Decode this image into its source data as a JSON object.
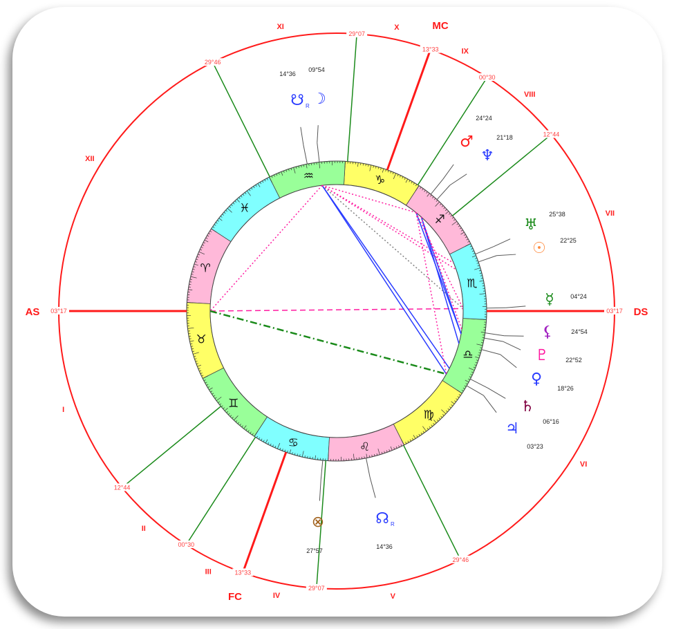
{
  "chart": {
    "ascendant": "03°17",
    "angles": {
      "as": "AS",
      "ds": "DS",
      "mc": "MC",
      "fc": "FC"
    },
    "signs": [
      {
        "name": "Aries",
        "glyph": "♈",
        "color": "#ffb9d9"
      },
      {
        "name": "Taurus",
        "glyph": "♉",
        "color": "#ffff66"
      },
      {
        "name": "Gemini",
        "glyph": "♊",
        "color": "#99ff99"
      },
      {
        "name": "Cancer",
        "glyph": "♋",
        "color": "#80ffff"
      },
      {
        "name": "Leo",
        "glyph": "♌",
        "color": "#ffb9d9"
      },
      {
        "name": "Virgo",
        "glyph": "♍",
        "color": "#ffff66"
      },
      {
        "name": "Libra",
        "glyph": "♎",
        "color": "#99ff99"
      },
      {
        "name": "Scorpio",
        "glyph": "♏",
        "color": "#80ffff"
      },
      {
        "name": "Sagittarius",
        "glyph": "♐",
        "color": "#ffb9d9"
      },
      {
        "name": "Capricorn",
        "glyph": "♑",
        "color": "#ffff66"
      },
      {
        "name": "Aquarius",
        "glyph": "♒",
        "color": "#99ff99"
      },
      {
        "name": "Pisces",
        "glyph": "♓",
        "color": "#80ffff"
      }
    ],
    "houses": [
      {
        "numeral": "I",
        "cusp_label": "03°17",
        "longitude": 33.28,
        "angle": true
      },
      {
        "numeral": "II",
        "cusp_label": "12°44",
        "longitude": 72.73,
        "angle": false
      },
      {
        "numeral": "III",
        "cusp_label": "00°30",
        "longitude": 90.5,
        "angle": false
      },
      {
        "numeral": "IV",
        "cusp_label": "13°33",
        "longitude": 103.55,
        "angle": true
      },
      {
        "numeral": "V",
        "cusp_label": "29°07",
        "longitude": 119.12,
        "angle": false
      },
      {
        "numeral": "VI",
        "cusp_label": "29°46",
        "longitude": 149.77,
        "angle": false
      },
      {
        "numeral": "VII",
        "cusp_label": "03°17",
        "longitude": 213.28,
        "angle": true
      },
      {
        "numeral": "VIII",
        "cusp_label": "12°44",
        "longitude": 252.73,
        "angle": false
      },
      {
        "numeral": "IX",
        "cusp_label": "00°30",
        "longitude": 270.5,
        "angle": false
      },
      {
        "numeral": "X",
        "cusp_label": "13°33",
        "longitude": 283.55,
        "angle": true
      },
      {
        "numeral": "XI",
        "cusp_label": "29°07",
        "longitude": 299.12,
        "angle": false
      },
      {
        "numeral": "XII",
        "cusp_label": "29°46",
        "longitude": 329.77,
        "angle": false
      }
    ],
    "bodies": [
      {
        "name": "south-node",
        "glyph": "☋",
        "retro": "R",
        "degree": "14°36",
        "longitude": 314.6,
        "color": "#2a3cff"
      },
      {
        "name": "moon",
        "glyph": "☽",
        "retro": "",
        "degree": "09°54",
        "longitude": 309.9,
        "color": "#2a3cff"
      },
      {
        "name": "mars",
        "glyph": "♂",
        "retro": "",
        "degree": "24°24",
        "longitude": 264.4,
        "color": "#ff1a1a"
      },
      {
        "name": "neptune",
        "glyph": "♆",
        "retro": "",
        "degree": "21°18",
        "longitude": 261.3,
        "color": "#2a3cff"
      },
      {
        "name": "uranus",
        "glyph": "♅",
        "retro": "",
        "degree": "25°38",
        "longitude": 235.6,
        "color": "#1a8a1a"
      },
      {
        "name": "sun",
        "glyph": "☉",
        "retro": "",
        "degree": "22°25",
        "longitude": 232.4,
        "color": "#ff8c40"
      },
      {
        "name": "mercury",
        "glyph": "☿",
        "retro": "",
        "degree": "04°24",
        "longitude": 214.4,
        "color": "#1a8a1a"
      },
      {
        "name": "lilith",
        "glyph": "⚸",
        "retro": "",
        "degree": "24°54",
        "longitude": 204.9,
        "color": "#a020c0"
      },
      {
        "name": "pluto",
        "glyph": "♇",
        "retro": "",
        "degree": "22°52",
        "longitude": 202.9,
        "color": "#ff1aa0"
      },
      {
        "name": "venus",
        "glyph": "♀",
        "retro": "",
        "degree": "18°26",
        "longitude": 198.4,
        "color": "#2a3cff"
      },
      {
        "name": "saturn",
        "glyph": "♄",
        "retro": "",
        "degree": "06°16",
        "longitude": 186.3,
        "color": "#800040"
      },
      {
        "name": "jupiter",
        "glyph": "♃",
        "retro": "",
        "degree": "03°23",
        "longitude": 183.4,
        "color": "#2a3cff"
      },
      {
        "name": "part-of-fortune",
        "glyph": "⊗",
        "retro": "",
        "degree": "27°57",
        "longitude": 117.95,
        "color": "#a0601a"
      },
      {
        "name": "north-node",
        "glyph": "☊",
        "retro": "R",
        "degree": "14°36",
        "longitude": 134.6,
        "color": "#2a3cff"
      }
    ],
    "aspects": [
      {
        "from": "ascendant",
        "to": "mercury",
        "style": "dashed",
        "color": "#ff1aa0"
      },
      {
        "from": "ascendant",
        "to": "jupiter",
        "style": "dashdot",
        "color": "#1a8a1a"
      },
      {
        "from": "moon",
        "to": "ascendant",
        "style": "dotted",
        "color": "#ff1aa0"
      },
      {
        "from": "moon",
        "to": "saturn",
        "style": "solid",
        "color": "#2a3cff"
      },
      {
        "from": "moon",
        "to": "jupiter",
        "style": "solid",
        "color": "#2a3cff"
      },
      {
        "from": "moon",
        "to": "sun",
        "style": "dotted",
        "color": "#ff1aa0"
      },
      {
        "from": "moon",
        "to": "mercury",
        "style": "dotted",
        "color": "#808080"
      },
      {
        "from": "moon",
        "to": "mars",
        "style": "dotted",
        "color": "#ff1aa0"
      },
      {
        "from": "moon",
        "to": "uranus",
        "style": "dotted",
        "color": "#ff1aa0"
      },
      {
        "from": "mars",
        "to": "pluto",
        "style": "solid",
        "color": "#2a3cff"
      },
      {
        "from": "neptune",
        "to": "pluto",
        "style": "solid",
        "color": "#2a3cff"
      },
      {
        "from": "neptune",
        "to": "venus",
        "style": "solid",
        "color": "#2a3cff"
      },
      {
        "from": "mars",
        "to": "mercury",
        "style": "dotted",
        "color": "#ff1aa0"
      },
      {
        "from": "neptune",
        "to": "lilith",
        "style": "dotted",
        "color": "#ff1aa0"
      },
      {
        "from": "mars",
        "to": "jupiter",
        "style": "dotted",
        "color": "#ff1aa0"
      }
    ]
  }
}
